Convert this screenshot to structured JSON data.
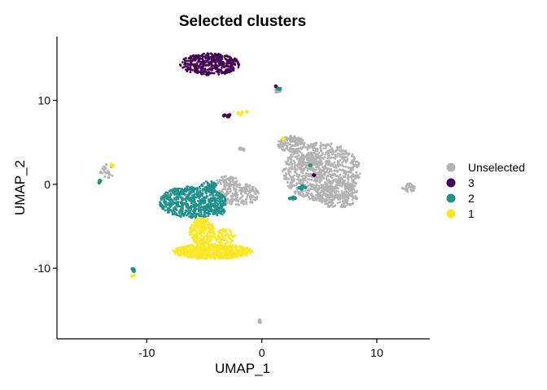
{
  "chart_data": {
    "type": "scatter",
    "title": "Selected clusters",
    "xlabel": "UMAP_1",
    "ylabel": "UMAP_2",
    "xlim": [
      -17.8,
      14.6
    ],
    "ylim": [
      -18.4,
      17.6
    ],
    "xticks": [
      -10,
      0,
      10
    ],
    "yticks": [
      -10,
      0,
      10
    ],
    "grid": false,
    "legend_position": "right",
    "series": [
      {
        "name": "Unselected",
        "color": "#b3b3b3",
        "regions": [
          {
            "cx": 5.2,
            "cy": 1.5,
            "rx": 3.4,
            "ry": 3.5,
            "n": 900
          },
          {
            "cx": 2.6,
            "cy": 4.8,
            "rx": 1.2,
            "ry": 1.0,
            "n": 160
          },
          {
            "cx": 4.2,
            "cy": 2.8,
            "rx": 1.0,
            "ry": 1.0,
            "n": 120
          },
          {
            "cx": 6.6,
            "cy": -1.2,
            "rx": 1.8,
            "ry": 1.7,
            "n": 260
          },
          {
            "cx": -2.0,
            "cy": -1.2,
            "rx": 1.8,
            "ry": 1.3,
            "n": 220
          },
          {
            "cx": -3.0,
            "cy": 0.4,
            "rx": 0.9,
            "ry": 0.6,
            "n": 60
          },
          {
            "cx": 12.8,
            "cy": -0.4,
            "rx": 0.6,
            "ry": 0.5,
            "n": 40
          },
          {
            "cx": -13.5,
            "cy": 1.5,
            "rx": 0.6,
            "ry": 0.9,
            "n": 30
          },
          {
            "cx": 1.4,
            "cy": 11.2,
            "rx": 0.2,
            "ry": 0.3,
            "n": 10
          },
          {
            "cx": -1.8,
            "cy": 4.2,
            "rx": 0.3,
            "ry": 0.2,
            "n": 6
          },
          {
            "cx": -0.1,
            "cy": -16.3,
            "rx": 0.15,
            "ry": 0.2,
            "n": 4
          }
        ]
      },
      {
        "name": "3",
        "color": "#440154",
        "regions": [
          {
            "cx": -4.5,
            "cy": 14.3,
            "rx": 2.6,
            "ry": 1.3,
            "n": 420
          },
          {
            "cx": -3.0,
            "cy": 8.2,
            "rx": 0.4,
            "ry": 0.2,
            "n": 6
          },
          {
            "cx": 1.2,
            "cy": 11.6,
            "rx": 0.1,
            "ry": 0.1,
            "n": 2
          },
          {
            "cx": 4.5,
            "cy": 1.1,
            "rx": 0.1,
            "ry": 0.1,
            "n": 2
          }
        ]
      },
      {
        "name": "2",
        "color": "#21908c",
        "regions": [
          {
            "cx": -6.0,
            "cy": -2.1,
            "rx": 2.9,
            "ry": 1.9,
            "n": 700
          },
          {
            "cx": -4.6,
            "cy": -0.2,
            "rx": 0.7,
            "ry": 0.6,
            "n": 60
          },
          {
            "cx": -3.8,
            "cy": -3.2,
            "rx": 0.6,
            "ry": 0.5,
            "n": 30
          },
          {
            "cx": 2.7,
            "cy": -1.6,
            "rx": 0.35,
            "ry": 0.15,
            "n": 8
          },
          {
            "cx": 3.5,
            "cy": -0.4,
            "rx": 0.3,
            "ry": 0.3,
            "n": 6
          },
          {
            "cx": -14.1,
            "cy": 0.3,
            "rx": 0.2,
            "ry": 0.2,
            "n": 5
          },
          {
            "cx": -11.2,
            "cy": -10.3,
            "rx": 0.15,
            "ry": 0.25,
            "n": 5
          },
          {
            "cx": 1.5,
            "cy": 11.3,
            "rx": 0.15,
            "ry": 0.15,
            "n": 4
          },
          {
            "cx": 4.2,
            "cy": 2.2,
            "rx": 0.1,
            "ry": 0.1,
            "n": 2
          }
        ]
      },
      {
        "name": "1",
        "color": "#fde725",
        "regions": [
          {
            "cx": -4.3,
            "cy": -8.0,
            "rx": 3.5,
            "ry": 0.9,
            "n": 700
          },
          {
            "cx": -5.2,
            "cy": -5.6,
            "rx": 1.1,
            "ry": 1.6,
            "n": 260
          },
          {
            "cx": -3.2,
            "cy": -6.2,
            "rx": 0.9,
            "ry": 0.9,
            "n": 80
          },
          {
            "cx": -1.8,
            "cy": 8.6,
            "rx": 0.6,
            "ry": 0.4,
            "n": 6
          },
          {
            "cx": 1.8,
            "cy": 5.5,
            "rx": 0.15,
            "ry": 0.15,
            "n": 3
          },
          {
            "cx": -13.0,
            "cy": 2.3,
            "rx": 0.15,
            "ry": 0.15,
            "n": 3
          },
          {
            "cx": -11.2,
            "cy": -10.9,
            "rx": 0.1,
            "ry": 0.1,
            "n": 2
          }
        ]
      }
    ]
  }
}
